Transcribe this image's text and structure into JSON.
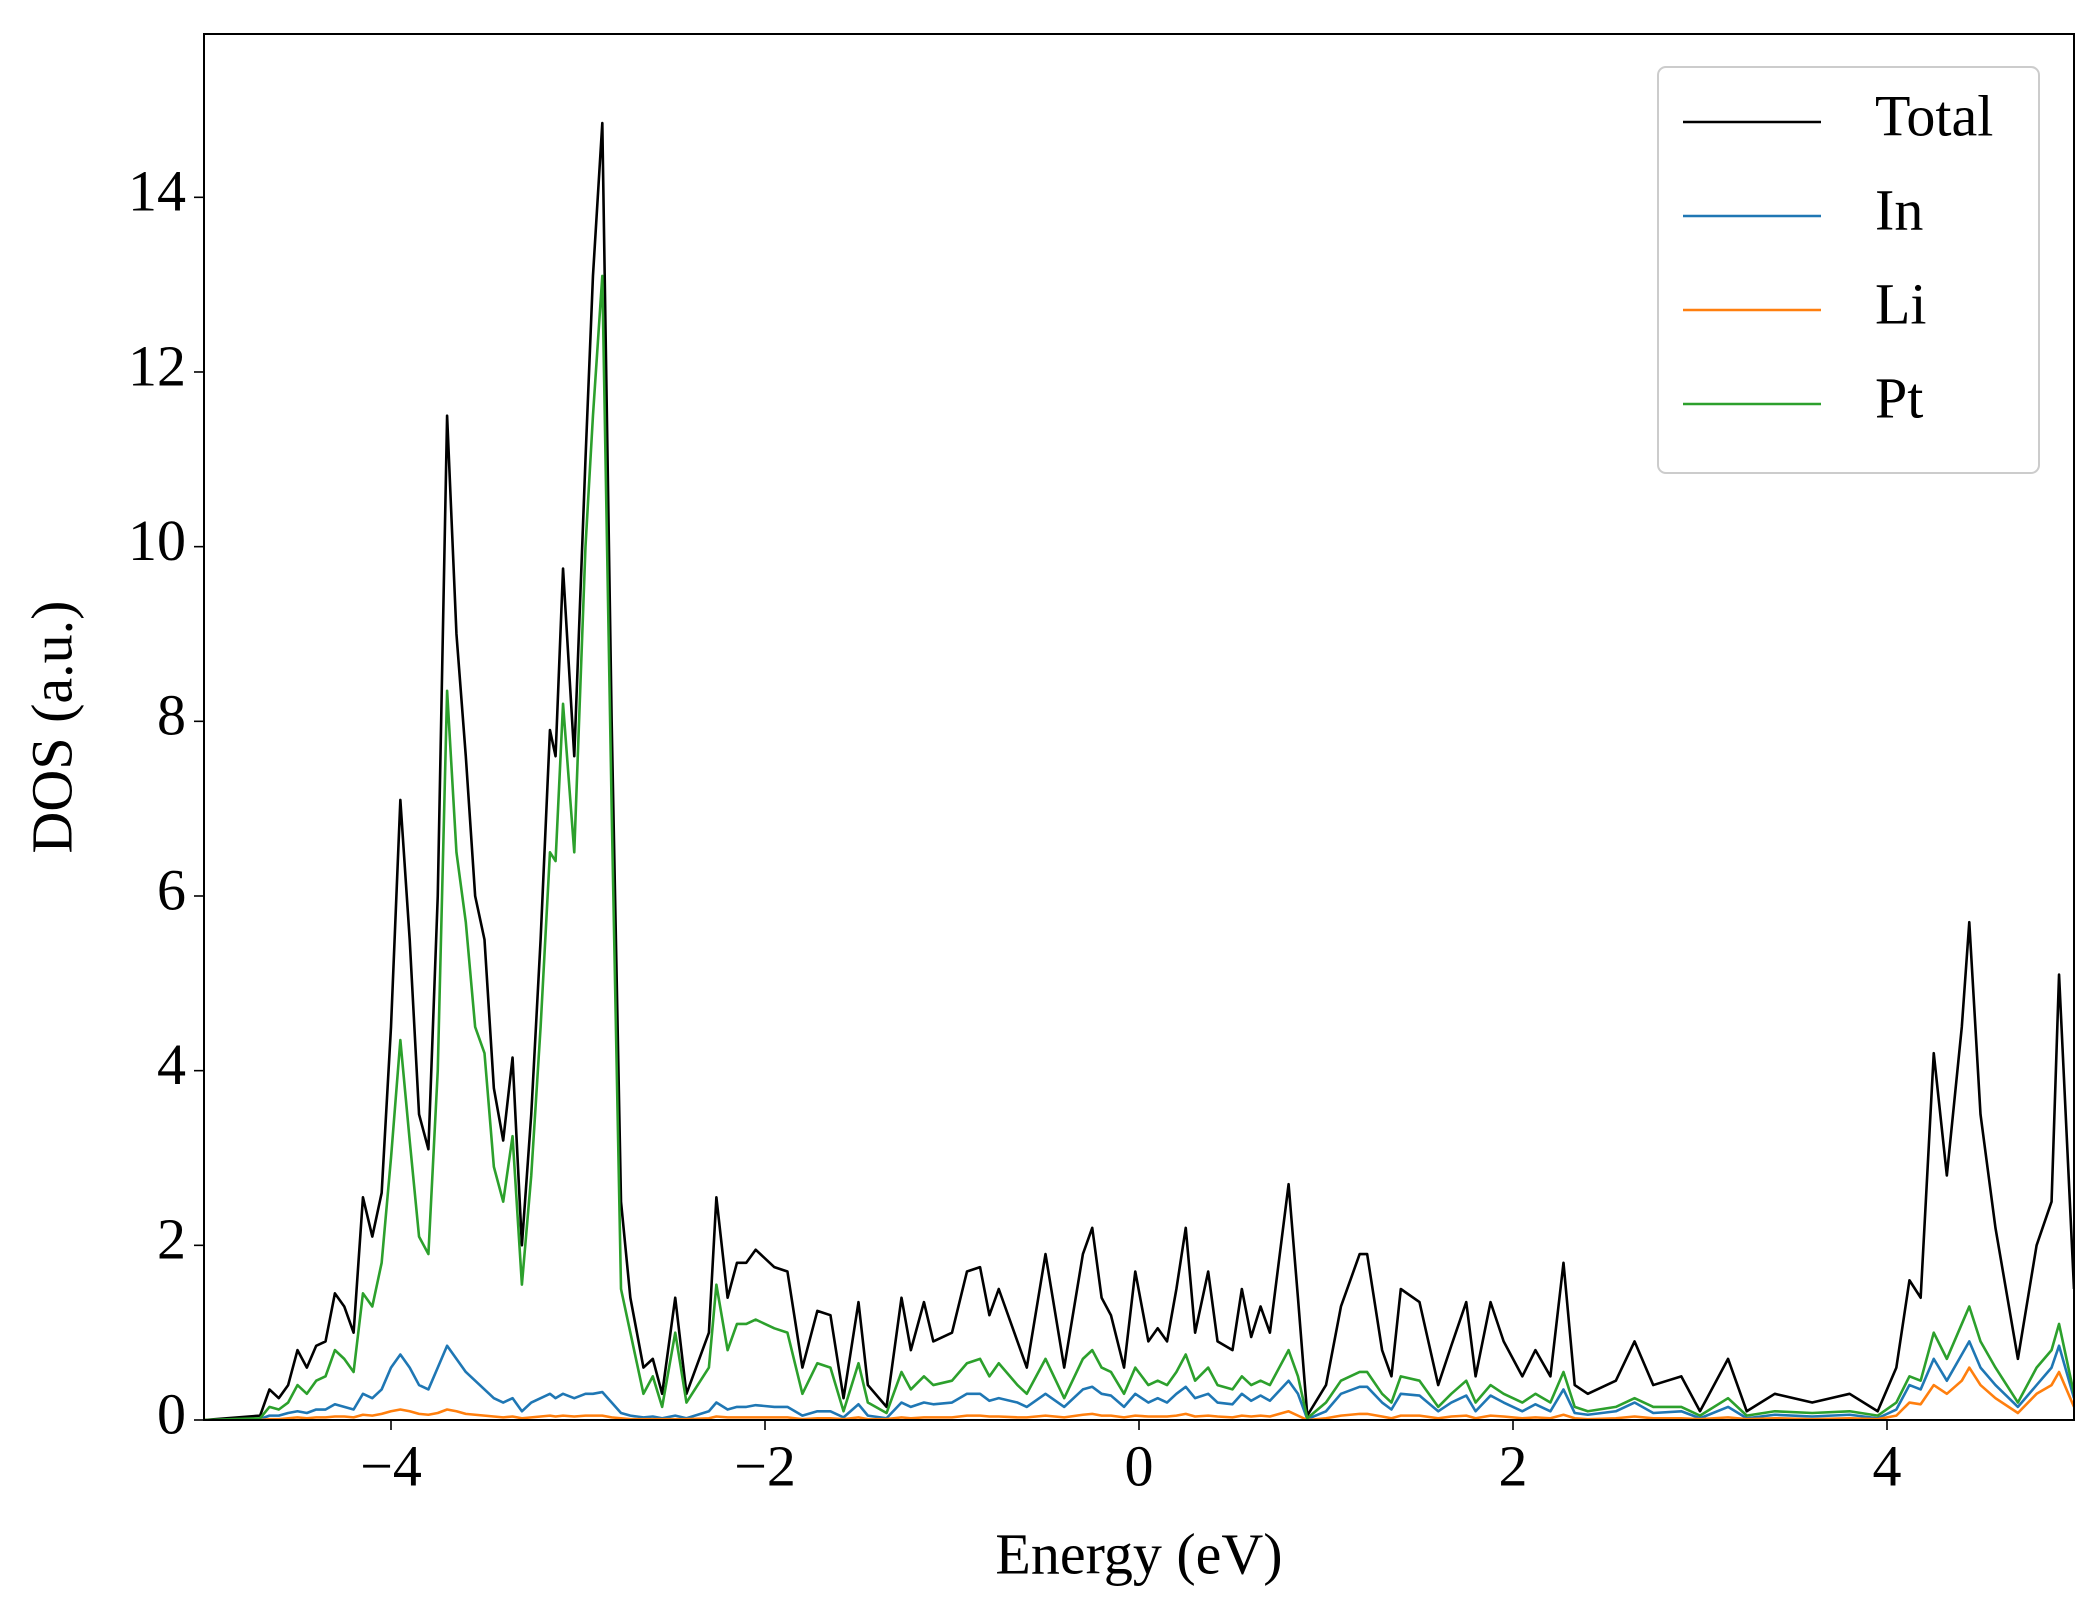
{
  "chart_data": {
    "type": "line",
    "xlabel": "Energy (eV)",
    "ylabel": "DOS (a.u.)",
    "xlim": [
      -5.0,
      5.0
    ],
    "ylim": [
      0,
      15.87
    ],
    "xticks": [
      {
        "value": -4,
        "label": "−4"
      },
      {
        "value": -2,
        "label": "−2"
      },
      0,
      2,
      4
    ],
    "yticks": [
      0,
      2,
      4,
      6,
      8,
      10,
      12,
      14
    ],
    "legend": "upper right",
    "x": [
      -5.0,
      -4.7,
      -4.65,
      -4.6,
      -4.55,
      -4.5,
      -4.45,
      -4.4,
      -4.35,
      -4.3,
      -4.25,
      -4.2,
      -4.15,
      -4.1,
      -4.05,
      -4.0,
      -3.95,
      -3.9,
      -3.85,
      -3.8,
      -3.75,
      -3.7,
      -3.65,
      -3.6,
      -3.55,
      -3.5,
      -3.45,
      -3.4,
      -3.35,
      -3.3,
      -3.25,
      -3.2,
      -3.15,
      -3.12,
      -3.08,
      -3.02,
      -2.96,
      -2.92,
      -2.87,
      -2.82,
      -2.77,
      -2.72,
      -2.65,
      -2.6,
      -2.55,
      -2.48,
      -2.42,
      -2.3,
      -2.26,
      -2.2,
      -2.15,
      -2.1,
      -2.05,
      -1.95,
      -1.88,
      -1.8,
      -1.72,
      -1.65,
      -1.58,
      -1.5,
      -1.45,
      -1.35,
      -1.27,
      -1.22,
      -1.15,
      -1.1,
      -1.0,
      -0.92,
      -0.85,
      -0.8,
      -0.75,
      -0.65,
      -0.6,
      -0.5,
      -0.4,
      -0.3,
      -0.25,
      -0.2,
      -0.15,
      -0.08,
      -0.02,
      0.05,
      0.1,
      0.15,
      0.2,
      0.25,
      0.3,
      0.37,
      0.42,
      0.5,
      0.55,
      0.6,
      0.65,
      0.7,
      0.8,
      0.85,
      0.9,
      1.0,
      1.08,
      1.18,
      1.22,
      1.3,
      1.35,
      1.4,
      1.5,
      1.6,
      1.67,
      1.75,
      1.8,
      1.88,
      1.95,
      2.05,
      2.12,
      2.2,
      2.27,
      2.33,
      2.4,
      2.55,
      2.65,
      2.75,
      2.9,
      3.0,
      3.15,
      3.25,
      3.4,
      3.6,
      3.8,
      3.95,
      4.05,
      4.12,
      4.18,
      4.25,
      4.32,
      4.4,
      4.44,
      4.5,
      4.58,
      4.7,
      4.8,
      4.88,
      4.92,
      5.0
    ],
    "series": [
      {
        "name": "Total",
        "color": "#000000",
        "values": [
          0,
          0.05,
          0.35,
          0.25,
          0.4,
          0.8,
          0.6,
          0.85,
          0.9,
          1.45,
          1.3,
          1.0,
          2.55,
          2.1,
          2.6,
          4.5,
          7.1,
          5.5,
          3.5,
          3.1,
          6.0,
          11.5,
          9.0,
          7.6,
          6.0,
          5.5,
          3.8,
          3.2,
          4.15,
          2.0,
          3.5,
          5.5,
          7.9,
          7.6,
          9.75,
          7.6,
          11.0,
          13.1,
          14.85,
          8.0,
          2.5,
          1.4,
          0.6,
          0.7,
          0.3,
          1.4,
          0.3,
          1.0,
          2.55,
          1.4,
          1.8,
          1.8,
          1.95,
          1.75,
          1.7,
          0.6,
          1.25,
          1.2,
          0.25,
          1.35,
          0.4,
          0.15,
          1.4,
          0.8,
          1.35,
          0.9,
          1.0,
          1.7,
          1.75,
          1.2,
          1.5,
          0.9,
          0.6,
          1.9,
          0.6,
          1.9,
          2.2,
          1.4,
          1.2,
          0.6,
          1.7,
          0.9,
          1.05,
          0.9,
          1.5,
          2.2,
          1.0,
          1.7,
          0.9,
          0.8,
          1.5,
          0.95,
          1.3,
          1.0,
          2.7,
          1.4,
          0.05,
          0.4,
          1.3,
          1.9,
          1.9,
          0.8,
          0.5,
          1.5,
          1.35,
          0.4,
          0.85,
          1.35,
          0.5,
          1.35,
          0.9,
          0.5,
          0.8,
          0.5,
          1.8,
          0.4,
          0.3,
          0.45,
          0.9,
          0.4,
          0.5,
          0.1,
          0.7,
          0.1,
          0.3,
          0.2,
          0.3,
          0.1,
          0.6,
          1.6,
          1.4,
          4.2,
          2.8,
          4.5,
          5.7,
          3.5,
          2.2,
          0.7,
          2.0,
          2.5,
          5.1,
          1.5
        ]
      },
      {
        "name": "In",
        "color": "#1f77b4",
        "values": [
          0,
          0.01,
          0.05,
          0.05,
          0.08,
          0.1,
          0.08,
          0.12,
          0.12,
          0.18,
          0.15,
          0.12,
          0.3,
          0.25,
          0.35,
          0.6,
          0.75,
          0.6,
          0.4,
          0.35,
          0.6,
          0.85,
          0.7,
          0.55,
          0.45,
          0.35,
          0.25,
          0.2,
          0.25,
          0.1,
          0.2,
          0.25,
          0.3,
          0.25,
          0.3,
          0.25,
          0.3,
          0.3,
          0.32,
          0.2,
          0.08,
          0.05,
          0.03,
          0.04,
          0.02,
          0.05,
          0.02,
          0.1,
          0.2,
          0.12,
          0.15,
          0.15,
          0.17,
          0.15,
          0.15,
          0.05,
          0.1,
          0.1,
          0.03,
          0.18,
          0.05,
          0.02,
          0.2,
          0.15,
          0.2,
          0.18,
          0.2,
          0.3,
          0.3,
          0.22,
          0.25,
          0.2,
          0.15,
          0.3,
          0.15,
          0.35,
          0.38,
          0.3,
          0.28,
          0.15,
          0.3,
          0.2,
          0.25,
          0.2,
          0.3,
          0.38,
          0.25,
          0.3,
          0.2,
          0.18,
          0.3,
          0.22,
          0.28,
          0.22,
          0.45,
          0.3,
          0.01,
          0.1,
          0.3,
          0.38,
          0.38,
          0.2,
          0.12,
          0.3,
          0.28,
          0.1,
          0.2,
          0.28,
          0.1,
          0.28,
          0.2,
          0.1,
          0.18,
          0.1,
          0.35,
          0.08,
          0.06,
          0.1,
          0.2,
          0.08,
          0.1,
          0.02,
          0.15,
          0.02,
          0.06,
          0.04,
          0.06,
          0.02,
          0.12,
          0.4,
          0.35,
          0.7,
          0.45,
          0.75,
          0.9,
          0.6,
          0.4,
          0.15,
          0.4,
          0.6,
          0.85,
          0.25
        ]
      },
      {
        "name": "Li",
        "color": "#ff7f0e",
        "values": [
          0,
          0,
          0.01,
          0.01,
          0.02,
          0.03,
          0.02,
          0.03,
          0.03,
          0.04,
          0.04,
          0.03,
          0.06,
          0.05,
          0.07,
          0.1,
          0.12,
          0.1,
          0.07,
          0.06,
          0.08,
          0.12,
          0.1,
          0.07,
          0.06,
          0.05,
          0.04,
          0.03,
          0.04,
          0.02,
          0.03,
          0.04,
          0.05,
          0.04,
          0.05,
          0.04,
          0.05,
          0.05,
          0.05,
          0.03,
          0.02,
          0.01,
          0.01,
          0.01,
          0.01,
          0.01,
          0.01,
          0.02,
          0.04,
          0.03,
          0.03,
          0.03,
          0.03,
          0.03,
          0.03,
          0.01,
          0.02,
          0.02,
          0.01,
          0.03,
          0.01,
          0.01,
          0.03,
          0.02,
          0.03,
          0.03,
          0.03,
          0.05,
          0.05,
          0.04,
          0.04,
          0.03,
          0.03,
          0.05,
          0.03,
          0.06,
          0.07,
          0.05,
          0.05,
          0.03,
          0.05,
          0.04,
          0.04,
          0.04,
          0.05,
          0.07,
          0.04,
          0.05,
          0.04,
          0.03,
          0.05,
          0.04,
          0.05,
          0.04,
          0.1,
          0.05,
          0,
          0.02,
          0.05,
          0.07,
          0.07,
          0.04,
          0.02,
          0.05,
          0.05,
          0.02,
          0.04,
          0.05,
          0.02,
          0.05,
          0.04,
          0.02,
          0.03,
          0.02,
          0.06,
          0.02,
          0.01,
          0.02,
          0.04,
          0.02,
          0.02,
          0.01,
          0.03,
          0.01,
          0.02,
          0.01,
          0.02,
          0.01,
          0.05,
          0.2,
          0.18,
          0.4,
          0.3,
          0.45,
          0.6,
          0.4,
          0.25,
          0.08,
          0.3,
          0.4,
          0.55,
          0.15
        ]
      },
      {
        "name": "Pt",
        "color": "#2ca02c",
        "values": [
          0,
          0.02,
          0.15,
          0.12,
          0.2,
          0.4,
          0.3,
          0.45,
          0.5,
          0.8,
          0.7,
          0.55,
          1.45,
          1.3,
          1.8,
          3.0,
          4.35,
          3.2,
          2.1,
          1.9,
          4.0,
          8.35,
          6.5,
          5.7,
          4.5,
          4.2,
          2.9,
          2.5,
          3.25,
          1.55,
          2.8,
          4.5,
          6.5,
          6.4,
          8.2,
          6.5,
          10.0,
          11.5,
          13.1,
          7.0,
          1.5,
          1.0,
          0.3,
          0.5,
          0.15,
          1.0,
          0.2,
          0.6,
          1.55,
          0.8,
          1.1,
          1.1,
          1.15,
          1.05,
          1.0,
          0.3,
          0.65,
          0.6,
          0.1,
          0.65,
          0.2,
          0.08,
          0.55,
          0.35,
          0.5,
          0.4,
          0.45,
          0.65,
          0.7,
          0.5,
          0.65,
          0.4,
          0.3,
          0.7,
          0.25,
          0.7,
          0.8,
          0.6,
          0.55,
          0.3,
          0.6,
          0.4,
          0.45,
          0.4,
          0.55,
          0.75,
          0.45,
          0.6,
          0.4,
          0.35,
          0.5,
          0.4,
          0.45,
          0.4,
          0.8,
          0.5,
          0.02,
          0.2,
          0.45,
          0.55,
          0.55,
          0.3,
          0.2,
          0.5,
          0.45,
          0.15,
          0.3,
          0.45,
          0.2,
          0.4,
          0.3,
          0.2,
          0.3,
          0.2,
          0.55,
          0.15,
          0.1,
          0.15,
          0.25,
          0.15,
          0.15,
          0.05,
          0.25,
          0.05,
          0.1,
          0.08,
          0.1,
          0.05,
          0.2,
          0.5,
          0.45,
          1.0,
          0.7,
          1.1,
          1.3,
          0.9,
          0.6,
          0.2,
          0.6,
          0.8,
          1.1,
          0.3
        ]
      }
    ]
  }
}
